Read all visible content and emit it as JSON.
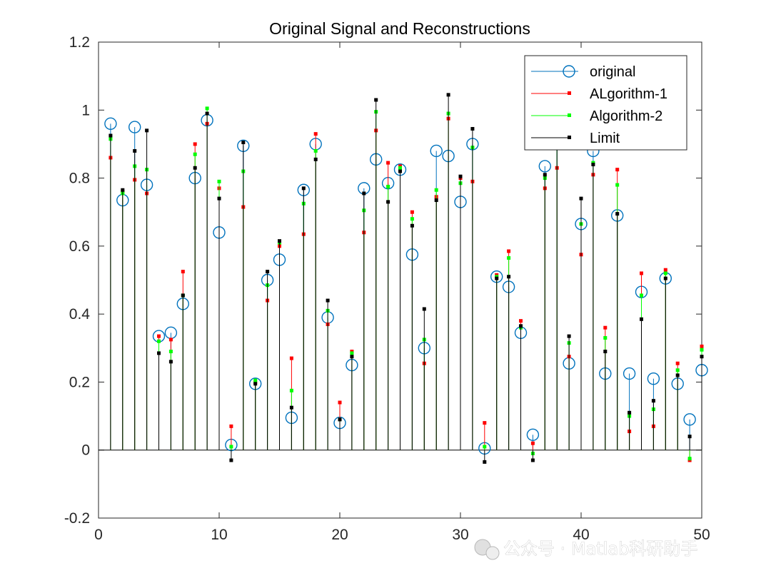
{
  "chart_data": {
    "type": "stem",
    "title": "Original Signal and Reconstructions",
    "xlim": [
      0,
      50
    ],
    "ylim": [
      -0.2,
      1.2
    ],
    "x_ticks": [
      0,
      10,
      20,
      30,
      40,
      50
    ],
    "x_tick_labels": [
      "0",
      "10",
      "20",
      "30",
      "40",
      "50"
    ],
    "y_ticks": [
      -0.2,
      0,
      0.2,
      0.4,
      0.6,
      0.8,
      1,
      1.2
    ],
    "y_tick_labels": [
      "-0.2",
      "0",
      "0.2",
      "0.4",
      "0.6",
      "0.8",
      "1",
      "1.2"
    ],
    "legend_position": "top-right",
    "x": [
      1,
      2,
      3,
      4,
      5,
      6,
      7,
      8,
      9,
      10,
      11,
      12,
      13,
      14,
      15,
      16,
      17,
      18,
      19,
      20,
      21,
      22,
      23,
      24,
      25,
      26,
      27,
      28,
      29,
      30,
      31,
      32,
      33,
      34,
      35,
      36,
      37,
      38,
      39,
      40,
      41,
      42,
      43,
      44,
      45,
      46,
      47,
      48,
      49,
      50
    ],
    "series": [
      {
        "name": "original",
        "color": "#0072BD",
        "marker": "circle",
        "values": [
          0.96,
          0.735,
          0.95,
          0.78,
          0.335,
          0.345,
          0.43,
          0.8,
          0.97,
          0.64,
          0.015,
          0.895,
          0.195,
          0.5,
          0.56,
          0.095,
          0.765,
          0.9,
          0.39,
          0.08,
          0.25,
          0.77,
          0.855,
          0.785,
          0.825,
          0.575,
          0.3,
          0.88,
          0.865,
          0.73,
          0.9,
          0.005,
          0.51,
          0.48,
          0.345,
          0.045,
          0.835,
          0.905,
          0.255,
          0.665,
          0.88,
          0.225,
          0.69,
          0.225,
          0.465,
          0.21,
          0.505,
          0.195,
          0.09,
          0.235
        ]
      },
      {
        "name": "ALgorithm-1",
        "color": "#FF0000",
        "marker": "square",
        "values": [
          0.86,
          0.76,
          0.795,
          0.755,
          0.335,
          0.325,
          0.525,
          0.9,
          0.96,
          0.77,
          0.07,
          0.715,
          0.2,
          0.44,
          0.6,
          0.27,
          0.635,
          0.93,
          0.37,
          0.14,
          0.29,
          0.64,
          0.94,
          0.845,
          0.835,
          0.7,
          0.255,
          0.745,
          0.975,
          0.8,
          0.79,
          0.08,
          0.515,
          0.585,
          0.38,
          0.02,
          0.77,
          0.83,
          0.275,
          0.575,
          0.81,
          0.36,
          0.825,
          0.055,
          0.52,
          0.07,
          0.53,
          0.255,
          -0.03,
          0.305
        ]
      },
      {
        "name": "Algorithm-2",
        "color": "#00FF00",
        "marker": "square",
        "values": [
          0.915,
          0.755,
          0.835,
          0.825,
          0.32,
          0.29,
          0.455,
          0.87,
          1.005,
          0.79,
          0.01,
          0.82,
          0.205,
          0.485,
          0.61,
          0.175,
          0.725,
          0.88,
          0.41,
          0.09,
          0.285,
          0.705,
          0.995,
          0.775,
          0.83,
          0.68,
          0.325,
          0.765,
          0.99,
          0.785,
          0.89,
          0.01,
          0.51,
          0.565,
          0.36,
          -0.01,
          0.8,
          0.92,
          0.315,
          0.665,
          0.845,
          0.33,
          0.78,
          0.1,
          0.455,
          0.12,
          0.52,
          0.235,
          -0.025,
          0.295
        ]
      },
      {
        "name": "Limit",
        "color": "#000000",
        "marker": "square",
        "values": [
          0.925,
          0.765,
          0.88,
          0.94,
          0.285,
          0.26,
          0.455,
          0.83,
          0.99,
          0.74,
          -0.03,
          0.905,
          0.195,
          0.525,
          0.615,
          0.125,
          0.77,
          0.855,
          0.44,
          0.09,
          0.275,
          0.755,
          1.03,
          0.73,
          0.82,
          0.66,
          0.415,
          0.735,
          1.045,
          0.805,
          0.945,
          -0.035,
          0.505,
          0.51,
          0.365,
          -0.03,
          0.81,
          0.93,
          0.335,
          0.74,
          0.84,
          0.29,
          0.695,
          0.11,
          0.385,
          0.145,
          0.505,
          0.22,
          0.04,
          0.275
        ]
      }
    ]
  },
  "watermark": {
    "text": "公众号 · Matlab科研助手"
  }
}
